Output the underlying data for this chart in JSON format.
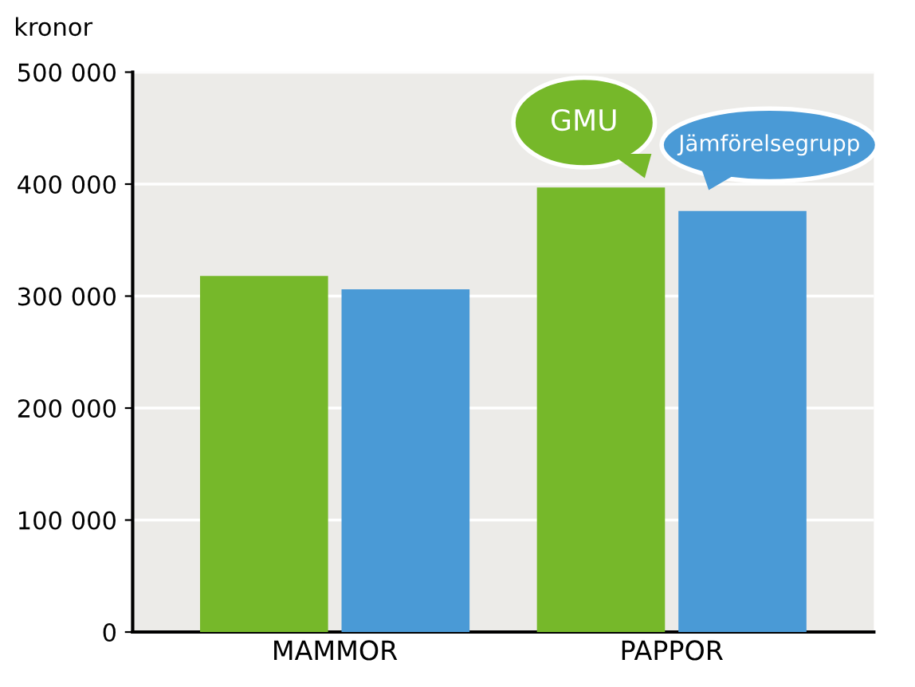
{
  "chart_data": {
    "type": "bar",
    "ylabel": "kronor",
    "categories": [
      "MAMMOR",
      "PAPPOR"
    ],
    "series": [
      {
        "name": "GMU",
        "color": "#76b82a",
        "values": [
          318000,
          397000
        ]
      },
      {
        "name": "Jämförelsegrupp",
        "color": "#4a9ad6",
        "values": [
          306000,
          376000
        ]
      }
    ],
    "ylim": [
      0,
      500000
    ],
    "yticks": [
      {
        "value": 0,
        "label": "0"
      },
      {
        "value": 100000,
        "label": "100 000"
      },
      {
        "value": 200000,
        "label": "200 000"
      },
      {
        "value": 300000,
        "label": "300 000"
      },
      {
        "value": 400000,
        "label": "400 000"
      },
      {
        "value": 500000,
        "label": "500 000"
      }
    ],
    "grid": "y"
  }
}
